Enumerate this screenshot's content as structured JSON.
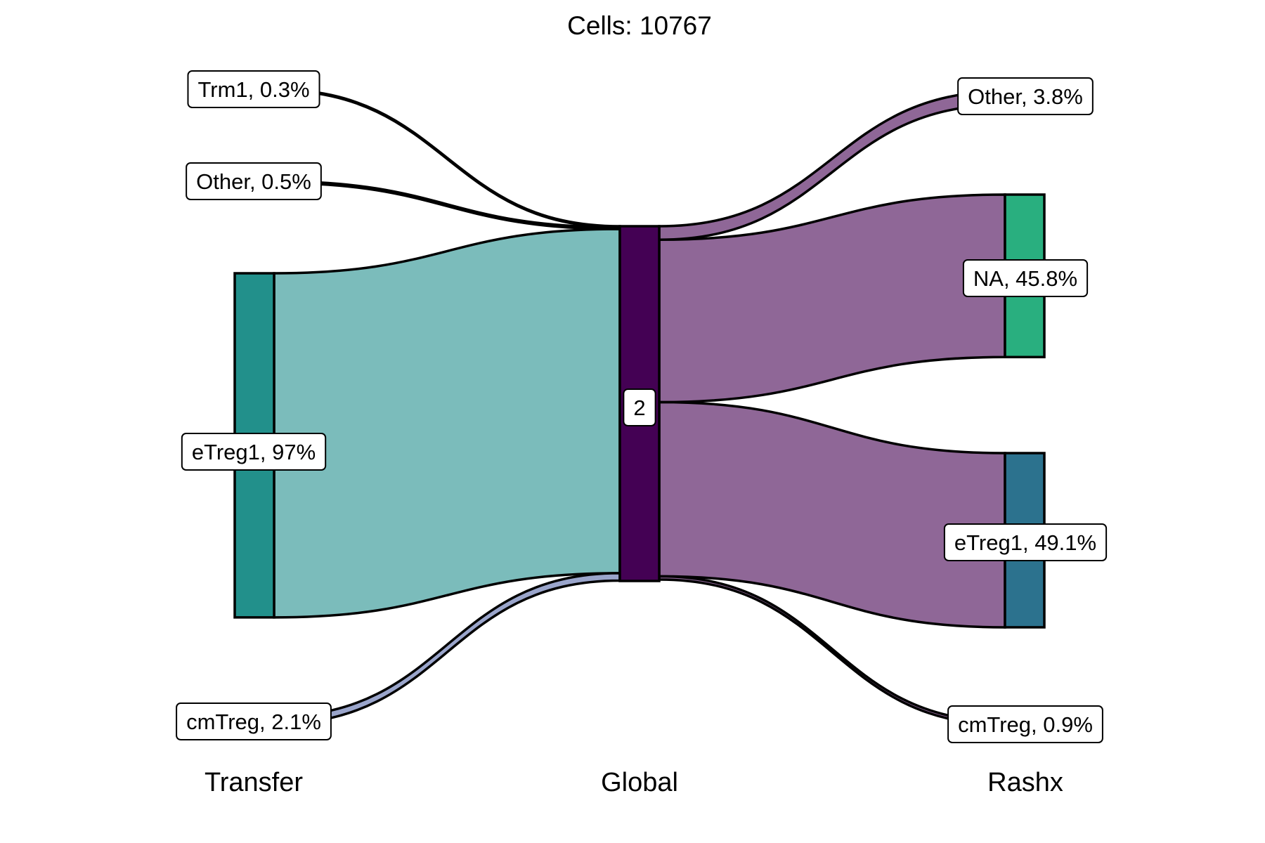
{
  "chart_data": {
    "type": "sankey",
    "title": "Cells:  10767",
    "axes": [
      "Transfer",
      "Global",
      "Rashx"
    ],
    "total_cells": 10767,
    "nodes": {
      "Transfer": [
        {
          "name": "Trm1",
          "percent": 0.3,
          "label": "Trm1, 0.3%",
          "color": "#22908b"
        },
        {
          "name": "Other",
          "percent": 0.5,
          "label": "Other, 0.5%",
          "color": "#22908b"
        },
        {
          "name": "eTreg1",
          "percent": 97,
          "label": "eTreg1, 97%",
          "color": "#22908b"
        },
        {
          "name": "cmTreg",
          "percent": 2.1,
          "label": "cmTreg, 2.1%",
          "color": "#9aa5cb"
        }
      ],
      "Global": [
        {
          "name": "2",
          "percent": 100,
          "label": "2",
          "color": "#440154"
        }
      ],
      "Rashx": [
        {
          "name": "Other",
          "percent": 3.8,
          "label": "Other, 3.8%",
          "color": "#8f6797"
        },
        {
          "name": "NA",
          "percent": 45.8,
          "label": "NA, 45.8%",
          "color": "#29af7f"
        },
        {
          "name": "eTreg1",
          "percent": 49.1,
          "label": "eTreg1, 49.1%",
          "color": "#2c728e"
        },
        {
          "name": "cmTreg",
          "percent": 0.9,
          "label": "cmTreg, 0.9%",
          "color": "#000000"
        }
      ]
    },
    "flows_left": [
      {
        "from": "Trm1",
        "to": "2",
        "percent": 0.3,
        "color": "#2a9d8f"
      },
      {
        "from": "Other",
        "to": "2",
        "percent": 0.5,
        "color": "#2a9d8f"
      },
      {
        "from": "eTreg1",
        "to": "2",
        "percent": 97,
        "color": "#7bbcbb"
      },
      {
        "from": "cmTreg",
        "to": "2",
        "percent": 2.1,
        "color": "#9aa5cb"
      }
    ],
    "flows_right": [
      {
        "from": "2",
        "to": "Other",
        "percent": 3.8,
        "color": "#8f6797"
      },
      {
        "from": "2",
        "to": "NA",
        "percent": 45.8,
        "color": "#8f6797"
      },
      {
        "from": "2",
        "to": "eTreg1",
        "percent": 49.1,
        "color": "#8f6797"
      },
      {
        "from": "2",
        "to": "cmTreg",
        "percent": 0.9,
        "color": "#8f6797"
      }
    ]
  }
}
